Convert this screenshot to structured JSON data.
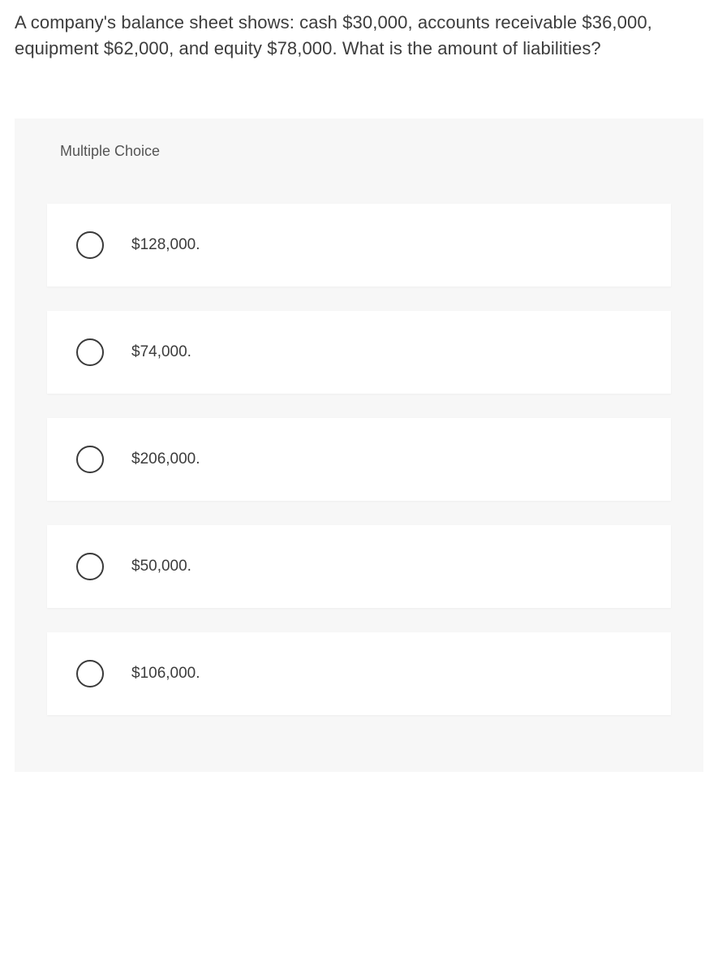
{
  "question": {
    "text": "A company's balance sheet shows: cash $30,000, accounts receivable $36,000, equipment $62,000, and equity $78,000. What is the amount of liabilities?"
  },
  "mc": {
    "header": "Multiple Choice",
    "choices": [
      {
        "label": "$128,000."
      },
      {
        "label": "$74,000."
      },
      {
        "label": "$206,000."
      },
      {
        "label": "$50,000."
      },
      {
        "label": "$106,000."
      }
    ]
  },
  "colors": {
    "page_bg": "#ffffff",
    "panel_bg": "#f7f7f7",
    "choice_bg": "#ffffff",
    "text": "#3c3c3c",
    "radio_border": "#3a3a3a"
  }
}
